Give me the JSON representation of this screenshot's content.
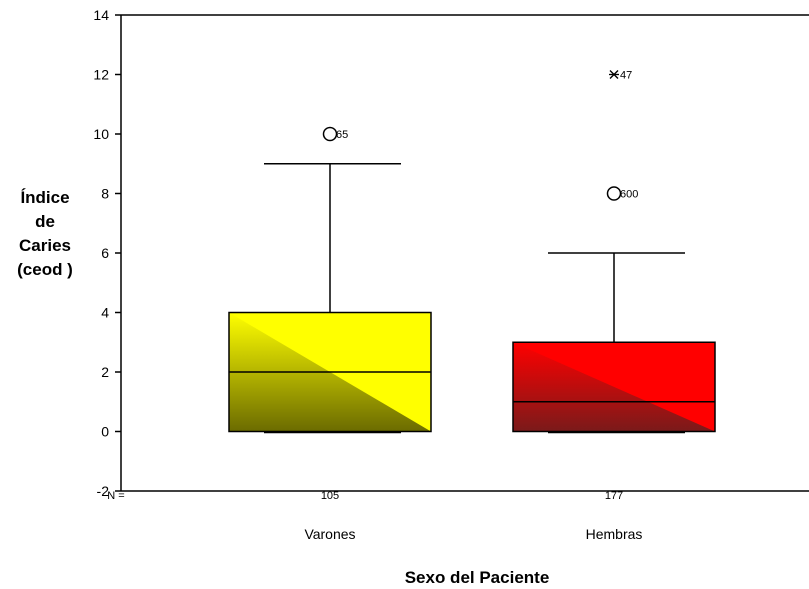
{
  "chart_data": {
    "type": "boxplot",
    "ylabel_lines": [
      "Índice",
      "de",
      "Caries",
      "(ceod )"
    ],
    "xlabel": "Sexo del Paciente",
    "ylim": [
      -2,
      14
    ],
    "yticks": [
      -2,
      0,
      2,
      4,
      6,
      8,
      10,
      12,
      14
    ],
    "n_label": "N =",
    "grid": false,
    "categories": [
      "Varones",
      "Hembras"
    ],
    "series": [
      {
        "category": "Varones",
        "n": "105",
        "min": 0,
        "q1": 0,
        "median": 2,
        "q3": 4,
        "max": 9,
        "color_light": "#ffff00",
        "color_dark": "#6b6b00",
        "outliers": [
          {
            "value": 10,
            "marker": "circle",
            "label": "65"
          }
        ]
      },
      {
        "category": "Hembras",
        "n": "177",
        "min": 0,
        "q1": 0,
        "median": 1,
        "q3": 3,
        "max": 6,
        "color_light": "#ff0000",
        "color_dark": "#7a1a1a",
        "outliers": [
          {
            "value": 8,
            "marker": "circle",
            "label": "600"
          },
          {
            "value": 12,
            "marker": "star",
            "label": "47"
          }
        ]
      }
    ]
  }
}
